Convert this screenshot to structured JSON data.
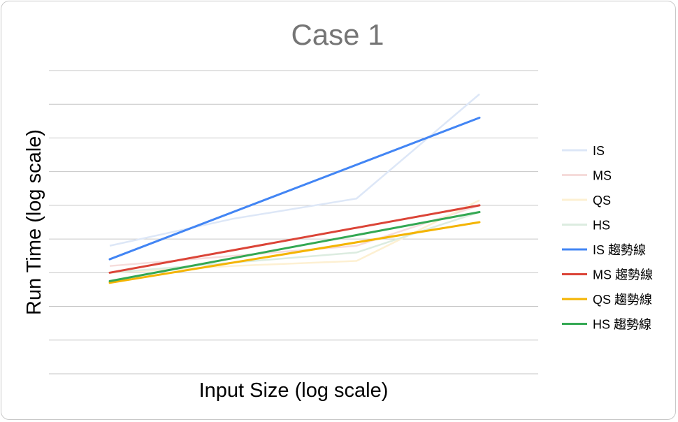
{
  "chart_data": {
    "type": "line",
    "title": "Case 1",
    "xlabel": "Input Size (log scale)",
    "ylabel": "Run Time (log scale)",
    "xscale": "log",
    "yscale": "log",
    "grid": true,
    "legend_position": "right",
    "tick_labels_shown": false,
    "x": [
      1,
      2,
      3,
      4
    ],
    "series": [
      {
        "name": "IS",
        "color": "#dde7f7",
        "values": [
          3.8,
          4.6,
          5.2,
          8.3
        ]
      },
      {
        "name": "MS",
        "color": "#f6dcdb",
        "values": [
          3.2,
          3.5,
          3.8,
          5.0
        ]
      },
      {
        "name": "QS",
        "color": "#fdf0d2",
        "values": [
          3.0,
          3.2,
          3.35,
          5.15
        ]
      },
      {
        "name": "HS",
        "color": "#dcece0",
        "values": [
          3.0,
          3.3,
          3.6,
          4.8
        ]
      },
      {
        "name": "IS 趨勢線",
        "color": "#4285f4",
        "trend": [
          3.4,
          7.6
        ]
      },
      {
        "name": "MS 趨勢線",
        "color": "#db4437",
        "trend": [
          3.0,
          5.0
        ]
      },
      {
        "name": "QS 趨勢線",
        "color": "#f4b400",
        "trend": [
          2.7,
          4.5
        ]
      },
      {
        "name": "HS 趨勢線",
        "color": "#34a853",
        "trend": [
          2.75,
          4.8
        ]
      }
    ]
  }
}
